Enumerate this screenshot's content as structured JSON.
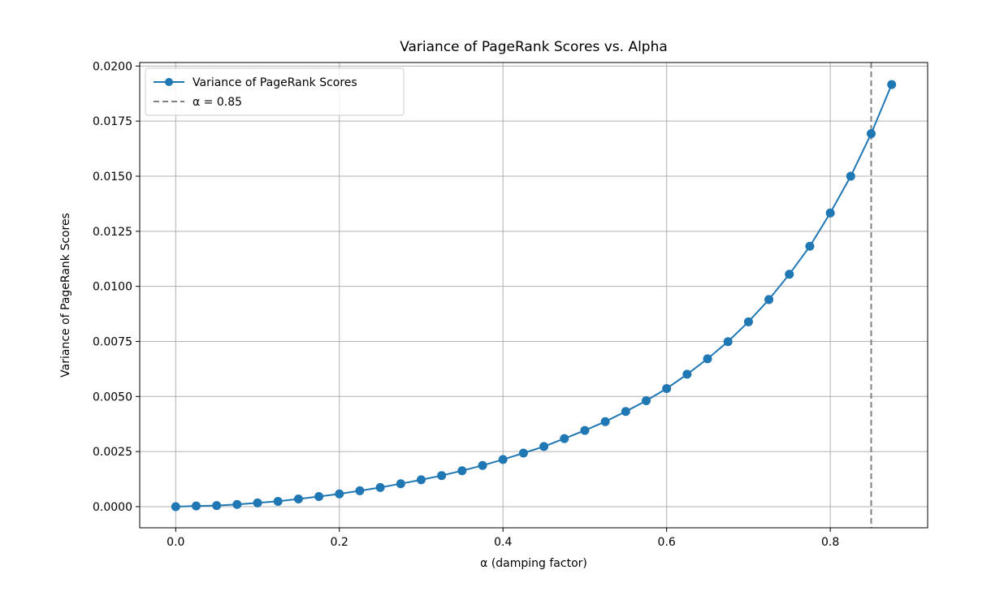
{
  "chart_data": {
    "type": "line",
    "title": "Variance of PageRank Scores vs. Alpha",
    "xlabel": "α (damping factor)",
    "ylabel": "Variance of PageRank Scores",
    "xlim": [
      -0.044,
      0.919
    ],
    "ylim": [
      -0.00096,
      0.02016
    ],
    "xticks": [
      0.0,
      0.2,
      0.4,
      0.6,
      0.8
    ],
    "xtick_labels": [
      "0.0",
      "0.2",
      "0.4",
      "0.6",
      "0.8"
    ],
    "yticks": [
      0.0,
      0.0025,
      0.005,
      0.0075,
      0.01,
      0.0125,
      0.015,
      0.0175,
      0.02
    ],
    "ytick_labels": [
      "0.0000",
      "0.0025",
      "0.0050",
      "0.0075",
      "0.0100",
      "0.0125",
      "0.0150",
      "0.0175",
      "0.0200"
    ],
    "grid": true,
    "legend_position": "upper-left",
    "series": [
      {
        "name": "Variance of PageRank Scores",
        "color": "#1f77b4",
        "marker": "circle",
        "x": [
          0.0,
          0.025,
          0.05,
          0.075,
          0.1,
          0.125,
          0.15,
          0.175,
          0.2,
          0.225,
          0.25,
          0.275,
          0.3,
          0.325,
          0.35,
          0.375,
          0.4,
          0.425,
          0.45,
          0.475,
          0.5,
          0.525,
          0.55,
          0.575,
          0.6,
          0.625,
          0.65,
          0.675,
          0.7,
          0.725,
          0.75,
          0.775,
          0.8,
          0.825,
          0.85,
          0.875
        ],
        "values": [
          0.0,
          3e-05,
          5e-05,
          0.0001,
          0.00017,
          0.00024,
          0.00035,
          0.00046,
          0.00058,
          0.00072,
          0.00087,
          0.00104,
          0.00122,
          0.00141,
          0.00163,
          0.00187,
          0.00214,
          0.00243,
          0.00273,
          0.00309,
          0.00346,
          0.00386,
          0.00432,
          0.00481,
          0.00536,
          0.00601,
          0.00671,
          0.00749,
          0.00839,
          0.0094,
          0.01055,
          0.01182,
          0.01333,
          0.015,
          0.01693,
          0.01916
        ]
      }
    ],
    "reference_line": {
      "name": "α = 0.85",
      "x": 0.85,
      "color": "#808080",
      "style": "dashed"
    }
  }
}
